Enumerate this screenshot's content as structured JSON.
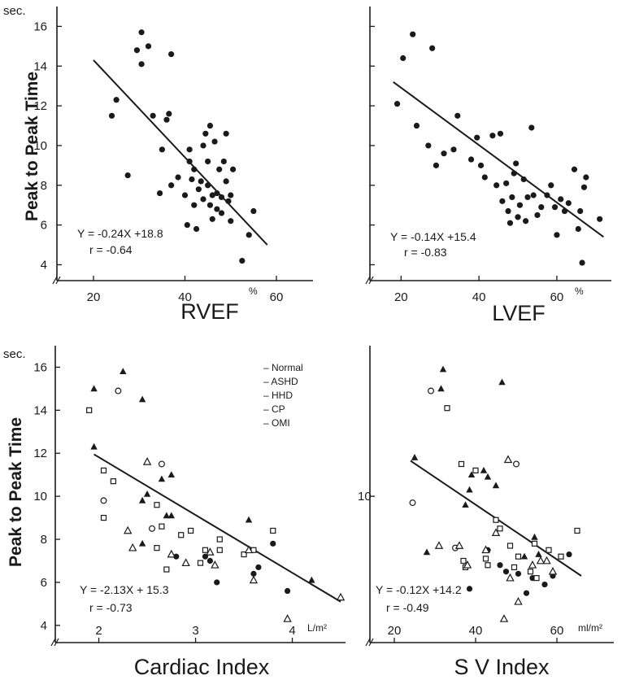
{
  "figure": {
    "ylabel": "Peak to Peak Time",
    "yunit": "sec."
  },
  "chart_data": [
    {
      "id": "rvef",
      "type": "scatter",
      "xlabel": "RVEF",
      "xunit": "%",
      "ylabel": "Peak to Peak Time",
      "yunit": "sec.",
      "xticks": [
        20,
        40,
        60
      ],
      "yticks": [
        4,
        6,
        8,
        10,
        12,
        14,
        16
      ],
      "xlim": [
        12,
        68
      ],
      "ylim": [
        3.2,
        17
      ],
      "equation": "Y = -0.24X +18.8",
      "r_text": "r = -0.64",
      "fit": {
        "x": [
          20,
          58
        ],
        "y": [
          14.3,
          5.0
        ]
      },
      "points": [
        [
          24,
          11.5
        ],
        [
          25,
          12.3
        ],
        [
          27.5,
          8.5
        ],
        [
          29.5,
          14.8
        ],
        [
          30.5,
          14.1
        ],
        [
          30.5,
          15.7
        ],
        [
          32,
          15.0
        ],
        [
          33,
          11.5
        ],
        [
          35,
          9.8
        ],
        [
          36,
          11.3
        ],
        [
          36.5,
          11.6
        ],
        [
          37,
          14.6
        ],
        [
          34.5,
          7.6
        ],
        [
          37,
          8.0
        ],
        [
          38.5,
          8.4
        ],
        [
          40,
          7.5
        ],
        [
          40.5,
          6.0
        ],
        [
          41,
          9.8
        ],
        [
          41,
          9.2
        ],
        [
          41.5,
          8.3
        ],
        [
          42,
          8.8
        ],
        [
          42,
          7.0
        ],
        [
          42.5,
          5.8
        ],
        [
          43,
          7.8
        ],
        [
          43.5,
          8.2
        ],
        [
          44,
          10.0
        ],
        [
          44,
          7.3
        ],
        [
          44.5,
          10.6
        ],
        [
          45,
          9.2
        ],
        [
          45,
          8.0
        ],
        [
          45.5,
          11.0
        ],
        [
          45.5,
          7.0
        ],
        [
          46,
          7.5
        ],
        [
          46,
          6.3
        ],
        [
          46.5,
          10.2
        ],
        [
          47,
          7.6
        ],
        [
          47,
          6.8
        ],
        [
          47.5,
          8.8
        ],
        [
          48,
          7.4
        ],
        [
          48,
          6.6
        ],
        [
          48.5,
          9.2
        ],
        [
          49,
          10.6
        ],
        [
          49,
          8.2
        ],
        [
          49.5,
          7.2
        ],
        [
          50,
          7.5
        ],
        [
          50,
          6.2
        ],
        [
          50.5,
          8.8
        ],
        [
          52.5,
          4.2
        ],
        [
          54,
          5.5
        ],
        [
          55,
          6.7
        ]
      ]
    },
    {
      "id": "lvef",
      "type": "scatter",
      "xlabel": "LVEF",
      "xunit": "%",
      "ylabel": "",
      "xticks": [
        20,
        40,
        60
      ],
      "yticks": [
        4,
        6,
        8,
        10,
        12,
        14,
        16
      ],
      "xlim": [
        12,
        74
      ],
      "ylim": [
        3.2,
        17
      ],
      "equation": "Y = -0.14X +15.4",
      "r_text": "r = -0.83",
      "fit": {
        "x": [
          18,
          72
        ],
        "y": [
          13.2,
          5.4
        ]
      },
      "points": [
        [
          19,
          12.1
        ],
        [
          20.5,
          14.4
        ],
        [
          23,
          15.6
        ],
        [
          24,
          11.0
        ],
        [
          27,
          10.0
        ],
        [
          28,
          14.9
        ],
        [
          29,
          9.0
        ],
        [
          31,
          9.6
        ],
        [
          33.5,
          9.8
        ],
        [
          34.5,
          11.5
        ],
        [
          38,
          9.3
        ],
        [
          39.5,
          10.4
        ],
        [
          40.5,
          9.0
        ],
        [
          41.5,
          8.4
        ],
        [
          43.5,
          10.5
        ],
        [
          44.5,
          8.0
        ],
        [
          45.5,
          10.6
        ],
        [
          46,
          7.2
        ],
        [
          47,
          8.1
        ],
        [
          47.5,
          6.7
        ],
        [
          48,
          6.1
        ],
        [
          48.5,
          7.4
        ],
        [
          49,
          8.6
        ],
        [
          49.5,
          9.1
        ],
        [
          50,
          6.4
        ],
        [
          50.5,
          7.0
        ],
        [
          51.5,
          8.3
        ],
        [
          52,
          6.2
        ],
        [
          52.5,
          7.4
        ],
        [
          53.5,
          10.9
        ],
        [
          54,
          7.5
        ],
        [
          55,
          6.5
        ],
        [
          56,
          6.9
        ],
        [
          57.5,
          7.5
        ],
        [
          58.5,
          8.0
        ],
        [
          59.5,
          6.9
        ],
        [
          60,
          5.5
        ],
        [
          61,
          7.3
        ],
        [
          62,
          6.7
        ],
        [
          63,
          7.1
        ],
        [
          64.5,
          8.8
        ],
        [
          65.5,
          5.8
        ],
        [
          66,
          6.7
        ],
        [
          66.5,
          4.1
        ],
        [
          67,
          7.9
        ],
        [
          67.5,
          8.4
        ],
        [
          71,
          6.3
        ]
      ]
    },
    {
      "id": "cardiac-index",
      "type": "scatter",
      "xlabel": "Cardiac Index",
      "xunit": "L/m²",
      "ylabel": "Peak to Peak Time",
      "yunit": "sec.",
      "xticks": [
        2,
        3,
        4
      ],
      "yticks": [
        4,
        6,
        8,
        10,
        12,
        14,
        16
      ],
      "xlim": [
        1.55,
        4.55
      ],
      "ylim": [
        3.2,
        17
      ],
      "equation": "Y = -2.13X + 15.3",
      "r_text": "r = -0.73",
      "legend": [
        "Normal",
        "ASHD",
        "HHD",
        "CP",
        "OMI"
      ],
      "fit": {
        "x": [
          1.95,
          4.5
        ],
        "y": [
          11.95,
          5.1
        ]
      },
      "groups": [
        {
          "name": "Normal",
          "marker": "filled-circle",
          "points": [
            [
              2.8,
              7.2
            ],
            [
              3.1,
              7.2
            ],
            [
              3.15,
              7.0
            ],
            [
              3.22,
              6.0
            ],
            [
              3.6,
              6.4
            ],
            [
              3.65,
              6.7
            ],
            [
              3.8,
              7.8
            ],
            [
              3.95,
              5.6
            ]
          ]
        },
        {
          "name": "ASHD",
          "marker": "filled-triangle",
          "points": [
            [
              1.95,
              15.0
            ],
            [
              1.95,
              12.3
            ],
            [
              2.25,
              15.8
            ],
            [
              2.45,
              14.5
            ],
            [
              2.45,
              9.8
            ],
            [
              2.5,
              10.1
            ],
            [
              2.45,
              7.8
            ],
            [
              2.7,
              9.1
            ],
            [
              2.75,
              11.0
            ],
            [
              2.75,
              9.1
            ],
            [
              2.65,
              10.8
            ],
            [
              3.55,
              8.9
            ],
            [
              4.2,
              6.1
            ]
          ]
        },
        {
          "name": "HHD",
          "marker": "open-circle",
          "points": [
            [
              2.05,
              9.8
            ],
            [
              2.2,
              14.9
            ],
            [
              2.55,
              8.5
            ],
            [
              2.65,
              11.5
            ]
          ]
        },
        {
          "name": "CP",
          "marker": "open-square",
          "points": [
            [
              1.9,
              14.0
            ],
            [
              2.05,
              11.2
            ],
            [
              2.05,
              9.0
            ],
            [
              2.15,
              10.7
            ],
            [
              2.6,
              9.6
            ],
            [
              2.6,
              7.6
            ],
            [
              2.65,
              8.6
            ],
            [
              2.7,
              6.6
            ],
            [
              2.85,
              8.2
            ],
            [
              2.95,
              8.4
            ],
            [
              3.05,
              6.9
            ],
            [
              3.1,
              7.5
            ],
            [
              3.25,
              8.0
            ],
            [
              3.25,
              7.5
            ],
            [
              3.5,
              7.3
            ],
            [
              3.6,
              7.5
            ],
            [
              3.8,
              8.4
            ]
          ]
        },
        {
          "name": "OMI",
          "marker": "open-triangle",
          "points": [
            [
              2.3,
              8.4
            ],
            [
              2.35,
              7.6
            ],
            [
              2.5,
              11.6
            ],
            [
              2.75,
              7.3
            ],
            [
              2.9,
              6.9
            ],
            [
              3.15,
              7.4
            ],
            [
              3.2,
              6.8
            ],
            [
              3.55,
              7.5
            ],
            [
              3.6,
              6.1
            ],
            [
              3.95,
              4.3
            ],
            [
              4.5,
              5.3
            ]
          ]
        }
      ]
    },
    {
      "id": "sv-index",
      "type": "scatter",
      "xlabel": "S V Index",
      "xunit": "ml/m²",
      "ylabel": "",
      "xticks": [
        20,
        40,
        60
      ],
      "yticks": [
        10
      ],
      "xlim": [
        14,
        74
      ],
      "ylim": [
        3.2,
        17
      ],
      "equation": "Y = -0.12X +14.2",
      "r_text": "r = -0.49",
      "fit": {
        "x": [
          24,
          66
        ],
        "y": [
          11.65,
          6.3
        ]
      },
      "groups": [
        {
          "name": "Normal",
          "marker": "filled-circle",
          "points": [
            [
              38.5,
              5.7
            ],
            [
              43,
              7.5
            ],
            [
              46,
              6.8
            ],
            [
              47.5,
              6.5
            ],
            [
              50.5,
              6.4
            ],
            [
              52.5,
              5.5
            ],
            [
              54,
              6.2
            ],
            [
              57,
              5.9
            ],
            [
              59,
              6.3
            ],
            [
              63,
              7.3
            ]
          ]
        },
        {
          "name": "ASHD",
          "marker": "filled-triangle",
          "points": [
            [
              25,
              11.8
            ],
            [
              28,
              7.4
            ],
            [
              31.5,
              15.0
            ],
            [
              32,
              15.9
            ],
            [
              37.5,
              9.6
            ],
            [
              38.5,
              10.3
            ],
            [
              39,
              11.0
            ],
            [
              42,
              11.2
            ],
            [
              43,
              10.9
            ],
            [
              45,
              10.5
            ],
            [
              46.5,
              15.3
            ],
            [
              52,
              7.2
            ],
            [
              54.5,
              8.1
            ],
            [
              55.5,
              7.3
            ]
          ]
        },
        {
          "name": "HHD",
          "marker": "open-circle",
          "points": [
            [
              24.5,
              9.7
            ],
            [
              29,
              14.9
            ],
            [
              35,
              7.6
            ],
            [
              50,
              11.5
            ]
          ]
        },
        {
          "name": "CP",
          "marker": "open-square",
          "points": [
            [
              33,
              14.1
            ],
            [
              36.5,
              11.5
            ],
            [
              37,
              7.0
            ],
            [
              37.5,
              6.7
            ],
            [
              40,
              11.2
            ],
            [
              42.5,
              7.1
            ],
            [
              43,
              6.8
            ],
            [
              45,
              8.9
            ],
            [
              46,
              8.5
            ],
            [
              48.5,
              7.7
            ],
            [
              49.5,
              6.7
            ],
            [
              50.5,
              7.2
            ],
            [
              53.5,
              6.5
            ],
            [
              54.5,
              7.8
            ],
            [
              55,
              6.2
            ],
            [
              58,
              7.5
            ],
            [
              61,
              7.2
            ],
            [
              65,
              8.4
            ]
          ]
        },
        {
          "name": "OMI",
          "marker": "open-triangle",
          "points": [
            [
              31,
              7.7
            ],
            [
              36,
              7.7
            ],
            [
              38,
              6.8
            ],
            [
              42.5,
              7.5
            ],
            [
              45,
              8.3
            ],
            [
              47,
              4.3
            ],
            [
              48,
              11.7
            ],
            [
              48.5,
              6.2
            ],
            [
              50.5,
              5.1
            ],
            [
              54,
              6.8
            ],
            [
              56,
              7.0
            ],
            [
              57.5,
              7.0
            ],
            [
              59,
              6.5
            ]
          ]
        }
      ]
    }
  ]
}
